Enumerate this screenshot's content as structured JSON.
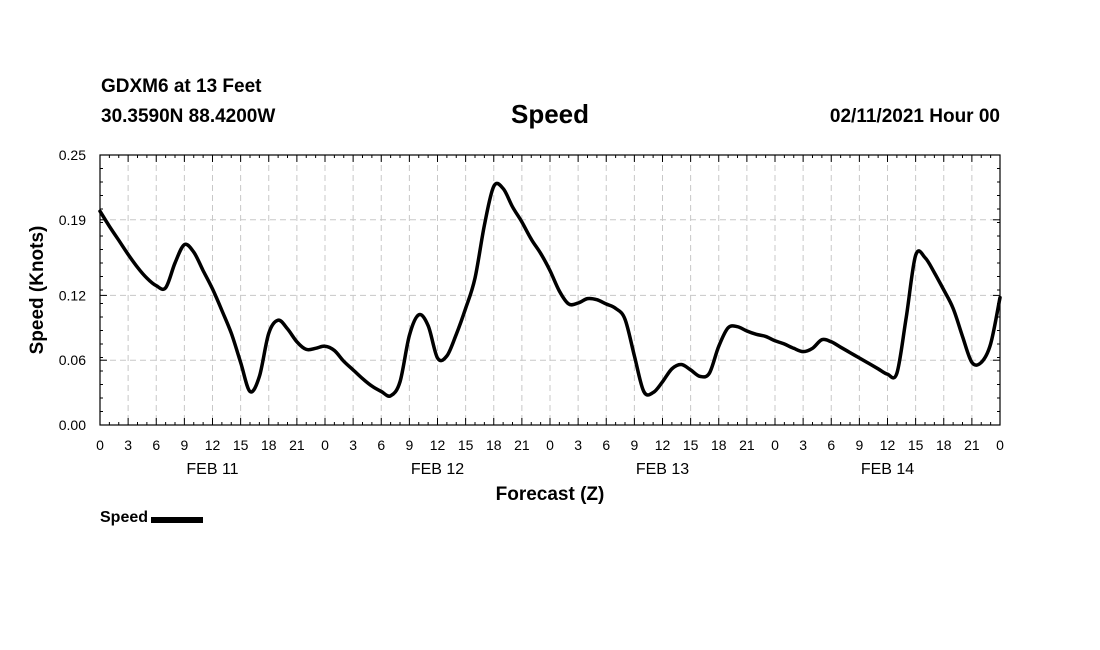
{
  "header": {
    "station": "GDXM6 at 13 Feet",
    "coords": "30.3590N 88.4200W",
    "title": "Speed",
    "datetime": "02/11/2021 Hour 00"
  },
  "chart_data": {
    "type": "line",
    "title": "Speed",
    "xlabel": "Forecast (Z)",
    "ylabel": "Speed (Knots)",
    "xlim": [
      0,
      96
    ],
    "ylim": [
      0,
      0.25
    ],
    "yticks": [
      0,
      0.06,
      0.12,
      0.19,
      0.25
    ],
    "ytick_labels": [
      "0.00",
      "0.06",
      "0.12",
      "0.19",
      "0.25"
    ],
    "xticks": [
      0,
      3,
      6,
      9,
      12,
      15,
      18,
      21,
      24,
      27,
      30,
      33,
      36,
      39,
      42,
      45,
      48,
      51,
      54,
      57,
      60,
      63,
      66,
      69,
      72,
      75,
      78,
      81,
      84,
      87,
      90,
      93,
      96
    ],
    "xtick_labels": [
      "0",
      "3",
      "6",
      "9",
      "12",
      "15",
      "18",
      "21",
      "0",
      "3",
      "6",
      "9",
      "12",
      "15",
      "18",
      "21",
      "0",
      "3",
      "6",
      "9",
      "12",
      "15",
      "18",
      "21",
      "0",
      "3",
      "6",
      "9",
      "12",
      "15",
      "18",
      "21",
      "0"
    ],
    "day_labels": [
      {
        "hour": 12,
        "label": "FEB 11"
      },
      {
        "hour": 36,
        "label": "FEB 12"
      },
      {
        "hour": 60,
        "label": "FEB 13"
      },
      {
        "hour": 84,
        "label": "FEB 14"
      }
    ],
    "grid": true,
    "legend": "bottom-left",
    "series": [
      {
        "name": "Speed",
        "color": "#000000",
        "x": [
          0,
          1,
          2,
          3,
          4,
          5,
          6,
          7,
          8,
          9,
          10,
          11,
          12,
          13,
          14,
          15,
          16,
          17,
          18,
          19,
          20,
          21,
          22,
          23,
          24,
          25,
          26,
          27,
          28,
          29,
          30,
          31,
          32,
          33,
          34,
          35,
          36,
          37,
          38,
          39,
          40,
          41,
          42,
          43,
          44,
          45,
          46,
          47,
          48,
          49,
          50,
          51,
          52,
          53,
          54,
          55,
          56,
          57,
          58,
          59,
          60,
          61,
          62,
          63,
          64,
          65,
          66,
          67,
          68,
          69,
          70,
          71,
          72,
          73,
          74,
          75,
          76,
          77,
          78,
          79,
          80,
          81,
          82,
          83,
          84,
          85,
          86,
          87,
          88,
          89,
          90,
          91,
          92,
          93,
          94,
          95,
          96
        ],
        "values": [
          0.198,
          0.184,
          0.171,
          0.158,
          0.146,
          0.136,
          0.129,
          0.127,
          0.15,
          0.167,
          0.16,
          0.143,
          0.126,
          0.106,
          0.085,
          0.058,
          0.031,
          0.045,
          0.085,
          0.097,
          0.089,
          0.077,
          0.07,
          0.071,
          0.073,
          0.069,
          0.059,
          0.051,
          0.043,
          0.036,
          0.031,
          0.027,
          0.04,
          0.083,
          0.102,
          0.092,
          0.062,
          0.064,
          0.084,
          0.108,
          0.136,
          0.185,
          0.221,
          0.219,
          0.202,
          0.188,
          0.172,
          0.159,
          0.143,
          0.124,
          0.112,
          0.113,
          0.117,
          0.116,
          0.112,
          0.108,
          0.098,
          0.064,
          0.031,
          0.03,
          0.04,
          0.052,
          0.056,
          0.051,
          0.045,
          0.048,
          0.073,
          0.09,
          0.091,
          0.087,
          0.084,
          0.082,
          0.078,
          0.075,
          0.071,
          0.068,
          0.071,
          0.079,
          0.077,
          0.072,
          0.067,
          0.062,
          0.057,
          0.052,
          0.047,
          0.048,
          0.1,
          0.157,
          0.155,
          0.141,
          0.125,
          0.108,
          0.082,
          0.058,
          0.058,
          0.075,
          0.118
        ]
      }
    ]
  },
  "legend": {
    "label": "Speed"
  }
}
